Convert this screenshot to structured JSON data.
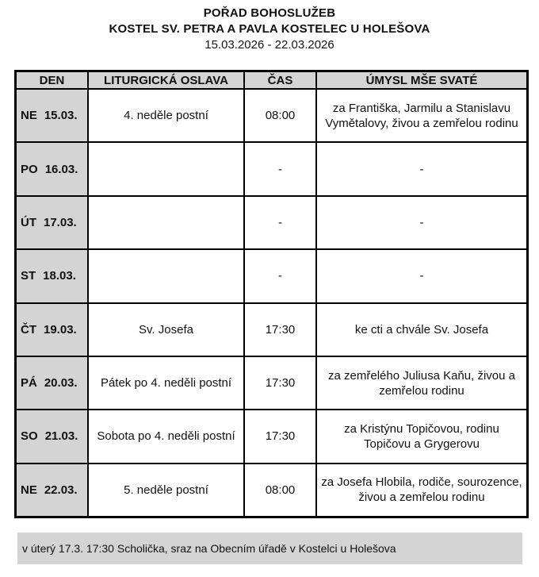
{
  "page": {
    "title_line1": "POŘAD BOHOSLUŽEB",
    "title_line2": "KOSTEL SV. PETRA A PAVLA KOSTELEC U HOLEŠOVA",
    "date_range": "15.03.2026 - 22.03.2026"
  },
  "table": {
    "headers": {
      "den": "DEN",
      "oslava": "LITURGICKÁ OSLAVA",
      "cas": "ČAS",
      "umysl": "ÚMYSL MŠE SVATÉ"
    },
    "rows": [
      {
        "day": "NE",
        "date": "15.03.",
        "celebration": "4. neděle postní",
        "time": "08:00",
        "intention": "za Františka, Jarmilu a Stanislavu Vymětalovy, živou a zemřelou rodinu"
      },
      {
        "day": "PO",
        "date": "16.03.",
        "celebration": "",
        "time": "-",
        "intention": "-"
      },
      {
        "day": "ÚT",
        "date": "17.03.",
        "celebration": "",
        "time": "-",
        "intention": "-"
      },
      {
        "day": "ST",
        "date": "18.03.",
        "celebration": "",
        "time": "-",
        "intention": "-"
      },
      {
        "day": "ČT",
        "date": "19.03.",
        "celebration": "Sv. Josefa",
        "time": "17:30",
        "intention": "ke cti a chvále Sv. Josefa"
      },
      {
        "day": "PÁ",
        "date": "20.03.",
        "celebration": "Pátek po 4. neděli postní",
        "time": "17:30",
        "intention": "za zemřelého Juliusa Kaňu, živou a zemřelou rodinu"
      },
      {
        "day": "SO",
        "date": "21.03.",
        "celebration": "Sobota po 4. neděli postní",
        "time": "17:30",
        "intention": "za Kristýnu Topičovou, rodinu Topičovu a Grygerovu"
      },
      {
        "day": "NE",
        "date": "22.03.",
        "celebration": "5. neděle postní",
        "time": "08:00",
        "intention": "za Josefa Hlobila, rodiče, sourozence, živou a zemřelou rodinu"
      }
    ]
  },
  "footer": {
    "note": "v úterý 17.3. 17:30 Scholička, sraz na Obecním úřadě v Kostelci u Holešova"
  },
  "colors": {
    "cell_gray": "#d4d4d4",
    "border_black": "#000000"
  }
}
